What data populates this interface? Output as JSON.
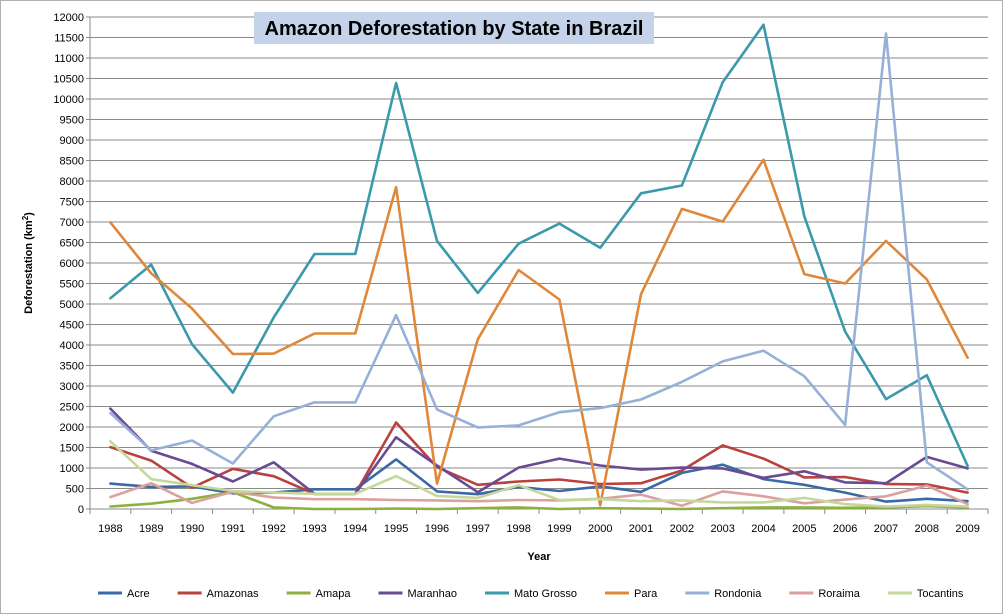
{
  "chart_data": {
    "type": "line",
    "title": "Amazon Deforestation by State in Brazil",
    "xlabel": "Year",
    "ylabel": "Deforestation (km",
    "ylabel_sup": "2",
    "ylabel_close": ")",
    "ylim": [
      0,
      12000
    ],
    "ystep": 500,
    "grid": "horizontal",
    "legend": "bottom",
    "x": [
      "1988",
      "1989",
      "1990",
      "1991",
      "1992",
      "1993",
      "1994",
      "1995",
      "1996",
      "1997",
      "1998",
      "1999",
      "2000",
      "2001",
      "2002",
      "2003",
      "2004",
      "2005",
      "2006",
      "2007",
      "2008",
      "2009"
    ],
    "series": [
      {
        "name": "Acre",
        "color": "#3a6aa6",
        "values": [
          620,
          540,
          550,
          380,
          400,
          480,
          480,
          1210,
          430,
          360,
          540,
          440,
          550,
          420,
          880,
          1080,
          730,
          590,
          400,
          180,
          250,
          190
        ]
      },
      {
        "name": "Amazonas",
        "color": "#b9423f",
        "values": [
          1510,
          1180,
          520,
          980,
          800,
          370,
          370,
          2110,
          1020,
          590,
          670,
          720,
          610,
          630,
          940,
          1550,
          1230,
          770,
          780,
          610,
          600,
          400
        ]
      },
      {
        "name": "Amapa",
        "color": "#8fb03f",
        "values": [
          60,
          130,
          250,
          410,
          40,
          0,
          0,
          10,
          0,
          20,
          40,
          0,
          20,
          10,
          0,
          20,
          40,
          40,
          30,
          40,
          70,
          40
        ]
      },
      {
        "name": "Maranhao",
        "color": "#6a4a91",
        "values": [
          2450,
          1420,
          1100,
          670,
          1140,
          370,
          370,
          1750,
          1060,
          410,
          1010,
          1230,
          1060,
          960,
          1010,
          990,
          760,
          920,
          650,
          630,
          1270,
          990
        ]
      },
      {
        "name": "Mato Grosso",
        "color": "#3a9aab",
        "values": [
          5140,
          5960,
          4020,
          2840,
          4670,
          6220,
          6220,
          10390,
          6540,
          5270,
          6470,
          6960,
          6370,
          7700,
          7890,
          10410,
          11810,
          7140,
          4330,
          2680,
          3260,
          1050
        ]
      },
      {
        "name": "Para",
        "color": "#e0883a",
        "values": [
          6990,
          5750,
          4890,
          3780,
          3790,
          4280,
          4280,
          7850,
          620,
          4140,
          5830,
          5110,
          90,
          5240,
          7320,
          7010,
          8520,
          5730,
          5500,
          6540,
          5600,
          3690
        ]
      },
      {
        "name": "Rondonia",
        "color": "#97b0d8",
        "values": [
          2340,
          1430,
          1670,
          1110,
          2260,
          2600,
          2600,
          4730,
          2430,
          1990,
          2040,
          2360,
          2460,
          2670,
          3100,
          3600,
          3860,
          3240,
          2050,
          11600,
          1140,
          480
        ]
      },
      {
        "name": "Roraima",
        "color": "#dba0a0",
        "values": [
          290,
          630,
          150,
          420,
          280,
          240,
          240,
          220,
          210,
          190,
          220,
          210,
          250,
          350,
          80,
          430,
          310,
          140,
          230,
          310,
          570,
          120
        ]
      },
      {
        "name": "Tocantins",
        "color": "#c4d89a",
        "values": [
          1650,
          730,
          580,
          440,
          400,
          370,
          370,
          800,
          320,
          270,
          580,
          220,
          240,
          190,
          210,
          160,
          160,
          270,
          120,
          60,
          100,
          60
        ]
      }
    ]
  }
}
